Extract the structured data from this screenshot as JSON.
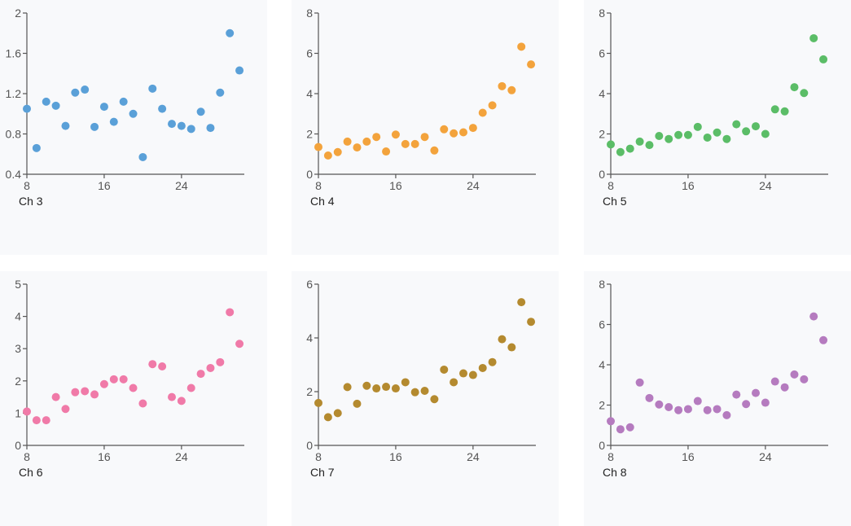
{
  "chart_data": [
    {
      "type": "scatter",
      "title": "Ch 3",
      "color": "#5aa0d8",
      "xlim": [
        8,
        30.5
      ],
      "ylim": [
        0.4,
        2
      ],
      "xticks": [
        "8",
        "16",
        "24"
      ],
      "yticks": [
        "0.4",
        "0.8",
        "1.2",
        "1.6",
        "2"
      ],
      "x": [
        8,
        9,
        10,
        11,
        12,
        13,
        14,
        15,
        16,
        17,
        18,
        19,
        20,
        21,
        22,
        23,
        24,
        25,
        26,
        27,
        28,
        29,
        30
      ],
      "y": [
        1.05,
        0.66,
        1.12,
        1.08,
        0.88,
        1.21,
        1.24,
        0.87,
        1.07,
        0.92,
        1.12,
        1.0,
        0.57,
        1.25,
        1.05,
        0.9,
        0.88,
        0.85,
        1.02,
        0.86,
        1.21,
        1.8,
        1.43
      ]
    },
    {
      "type": "scatter",
      "title": "Ch 4",
      "color": "#f3a33c",
      "xlim": [
        8,
        30.5
      ],
      "ylim": [
        0,
        8
      ],
      "xticks": [
        "8",
        "16",
        "24"
      ],
      "yticks": [
        "0",
        "2",
        "4",
        "6",
        "8"
      ],
      "x": [
        8,
        9,
        10,
        11,
        12,
        13,
        14,
        15,
        16,
        17,
        18,
        19,
        20,
        21,
        22,
        23,
        24,
        25,
        26,
        27,
        28,
        29,
        30
      ],
      "y": [
        1.35,
        0.93,
        1.1,
        1.62,
        1.33,
        1.62,
        1.85,
        1.13,
        1.97,
        1.5,
        1.5,
        1.85,
        1.18,
        2.23,
        2.03,
        2.08,
        2.3,
        3.05,
        3.42,
        4.37,
        4.17,
        6.33,
        5.45
      ]
    },
    {
      "type": "scatter",
      "title": "Ch 5",
      "color": "#5bbd67",
      "xlim": [
        8,
        30.5
      ],
      "ylim": [
        0,
        8
      ],
      "xticks": [
        "8",
        "16",
        "24"
      ],
      "yticks": [
        "0",
        "2",
        "4",
        "6",
        "8"
      ],
      "x": [
        8,
        9,
        10,
        11,
        12,
        13,
        14,
        15,
        16,
        17,
        18,
        19,
        20,
        21,
        22,
        23,
        24,
        25,
        26,
        27,
        28,
        29,
        30
      ],
      "y": [
        1.48,
        1.1,
        1.27,
        1.62,
        1.45,
        1.9,
        1.75,
        1.95,
        1.95,
        2.35,
        1.82,
        2.07,
        1.75,
        2.48,
        2.13,
        2.38,
        2.0,
        3.22,
        3.12,
        4.32,
        4.03,
        6.75,
        5.7
      ]
    },
    {
      "type": "scatter",
      "title": "Ch 6",
      "color": "#f07aa8",
      "xlim": [
        8,
        30.5
      ],
      "ylim": [
        0,
        5
      ],
      "xticks": [
        "8",
        "16",
        "24"
      ],
      "yticks": [
        "0",
        "1",
        "2",
        "3",
        "4",
        "5"
      ],
      "x": [
        8,
        9,
        10,
        11,
        12,
        13,
        14,
        15,
        16,
        17,
        18,
        19,
        20,
        21,
        22,
        23,
        24,
        25,
        26,
        27,
        28,
        29,
        30
      ],
      "y": [
        1.05,
        0.78,
        0.78,
        1.5,
        1.13,
        1.65,
        1.68,
        1.58,
        1.9,
        2.05,
        2.05,
        1.78,
        1.3,
        2.52,
        2.45,
        1.5,
        1.38,
        1.78,
        2.22,
        2.4,
        2.58,
        4.13,
        3.15
      ]
    },
    {
      "type": "scatter",
      "title": "Ch 7",
      "color": "#b48a2f",
      "xlim": [
        8,
        30.5
      ],
      "ylim": [
        0,
        6
      ],
      "xticks": [
        "8",
        "16",
        "24"
      ],
      "yticks": [
        "0",
        "2",
        "4",
        "6"
      ],
      "x": [
        8,
        9,
        10,
        11,
        12,
        13,
        14,
        15,
        16,
        17,
        18,
        19,
        20,
        21,
        22,
        23,
        24,
        25,
        26,
        27,
        28,
        29,
        30
      ],
      "y": [
        1.58,
        1.05,
        1.2,
        2.17,
        1.55,
        2.22,
        2.12,
        2.18,
        2.12,
        2.35,
        1.98,
        2.03,
        1.72,
        2.82,
        2.35,
        2.68,
        2.62,
        2.88,
        3.1,
        3.95,
        3.65,
        5.33,
        4.6
      ]
    },
    {
      "type": "scatter",
      "title": "Ch 8",
      "color": "#b57bbf",
      "xlim": [
        8,
        30.5
      ],
      "ylim": [
        0,
        8
      ],
      "xticks": [
        "8",
        "16",
        "24"
      ],
      "yticks": [
        "0",
        "2",
        "4",
        "6",
        "8"
      ],
      "x": [
        8,
        9,
        10,
        11,
        12,
        13,
        14,
        15,
        16,
        17,
        18,
        19,
        20,
        21,
        22,
        23,
        24,
        25,
        26,
        27,
        28,
        29,
        30
      ],
      "y": [
        1.2,
        0.8,
        0.9,
        3.12,
        2.35,
        2.03,
        1.9,
        1.75,
        1.8,
        2.2,
        1.75,
        1.8,
        1.5,
        2.52,
        2.05,
        2.6,
        2.12,
        3.17,
        2.88,
        3.52,
        3.28,
        6.4,
        5.22
      ]
    }
  ]
}
